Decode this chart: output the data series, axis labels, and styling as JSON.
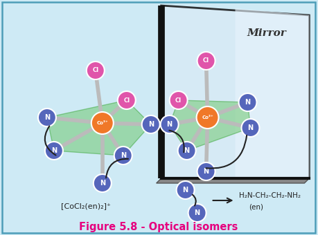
{
  "bg_color": "#ceeaf5",
  "border_color": "#4d9db8",
  "title": "Figure 5.8 - Optical isomers",
  "title_color": "#e6007e",
  "title_fontsize": 10.5,
  "mirror_face_color": "#ddeef7",
  "mirror_edge_color": "#222222",
  "mirror_label": "Mirror",
  "mirror_label_color": "#333333",
  "co_color": "#f07828",
  "cl_color": "#e055aa",
  "n_color": "#5566bb",
  "bond_color": "#bbbbbb",
  "plane_color": "#70c870",
  "plane_alpha": 0.55,
  "formula_label": "[CoCl₂(en)₂]⁺"
}
